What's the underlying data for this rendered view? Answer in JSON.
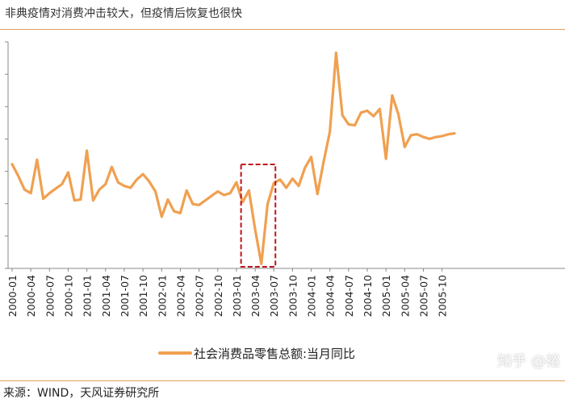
{
  "header": {
    "title": "非典疫情对消费冲击较大，但疫情后恢复也很快"
  },
  "footer": {
    "source": "来源：WIND，天风证券研究所",
    "watermark": "知乎 @裕"
  },
  "colors": {
    "line": "#f0a050",
    "highlight_box": "#c0141c",
    "rule": "#e0a060"
  },
  "chart_data": {
    "type": "line",
    "title": "",
    "xlabel": "",
    "ylabel": "",
    "x_tick_labels": [
      "2000-01",
      "2000-04",
      "2000-07",
      "2000-10",
      "2001-01",
      "2001-04",
      "2001-07",
      "2001-10",
      "2002-01",
      "2002-04",
      "2002-07",
      "2002-10",
      "2003-01",
      "2003-04",
      "2003-07",
      "2003-10",
      "2004-01",
      "2004-04",
      "2004-07",
      "2004-10",
      "2005-01",
      "2005-04",
      "2005-07",
      "2005-10"
    ],
    "x_start": "2000-01",
    "series": [
      {
        "name": "社会消费品零售总额:当月同比",
        "values": [
          11.5,
          10.2,
          8.7,
          8.3,
          12.0,
          7.7,
          8.3,
          8.8,
          9.3,
          10.6,
          7.5,
          7.6,
          13.0,
          7.5,
          8.7,
          9.3,
          11.2,
          9.5,
          9.1,
          8.9,
          9.8,
          10.4,
          9.6,
          8.5,
          5.7,
          7.6,
          6.3,
          6.1,
          8.6,
          7.1,
          7.0,
          7.5,
          8.0,
          8.5,
          8.1,
          8.3,
          9.5,
          7.3,
          8.6,
          4.3,
          0.5,
          7.1,
          9.4,
          9.8,
          8.9,
          9.9,
          9.1,
          11.1,
          12.3,
          8.2,
          11.8,
          15.1,
          23.8,
          16.9,
          15.9,
          15.8,
          17.2,
          17.4,
          16.8,
          17.6,
          12.1,
          19.1,
          17.0,
          13.4,
          14.7,
          14.8,
          14.5,
          14.3,
          14.5,
          14.6,
          14.8,
          14.9
        ]
      }
    ],
    "ylim": [
      0,
      25
    ],
    "grid": false,
    "legend_placement": "bottom",
    "highlight": {
      "x_from": "2003-02",
      "x_to": "2003-07"
    }
  }
}
